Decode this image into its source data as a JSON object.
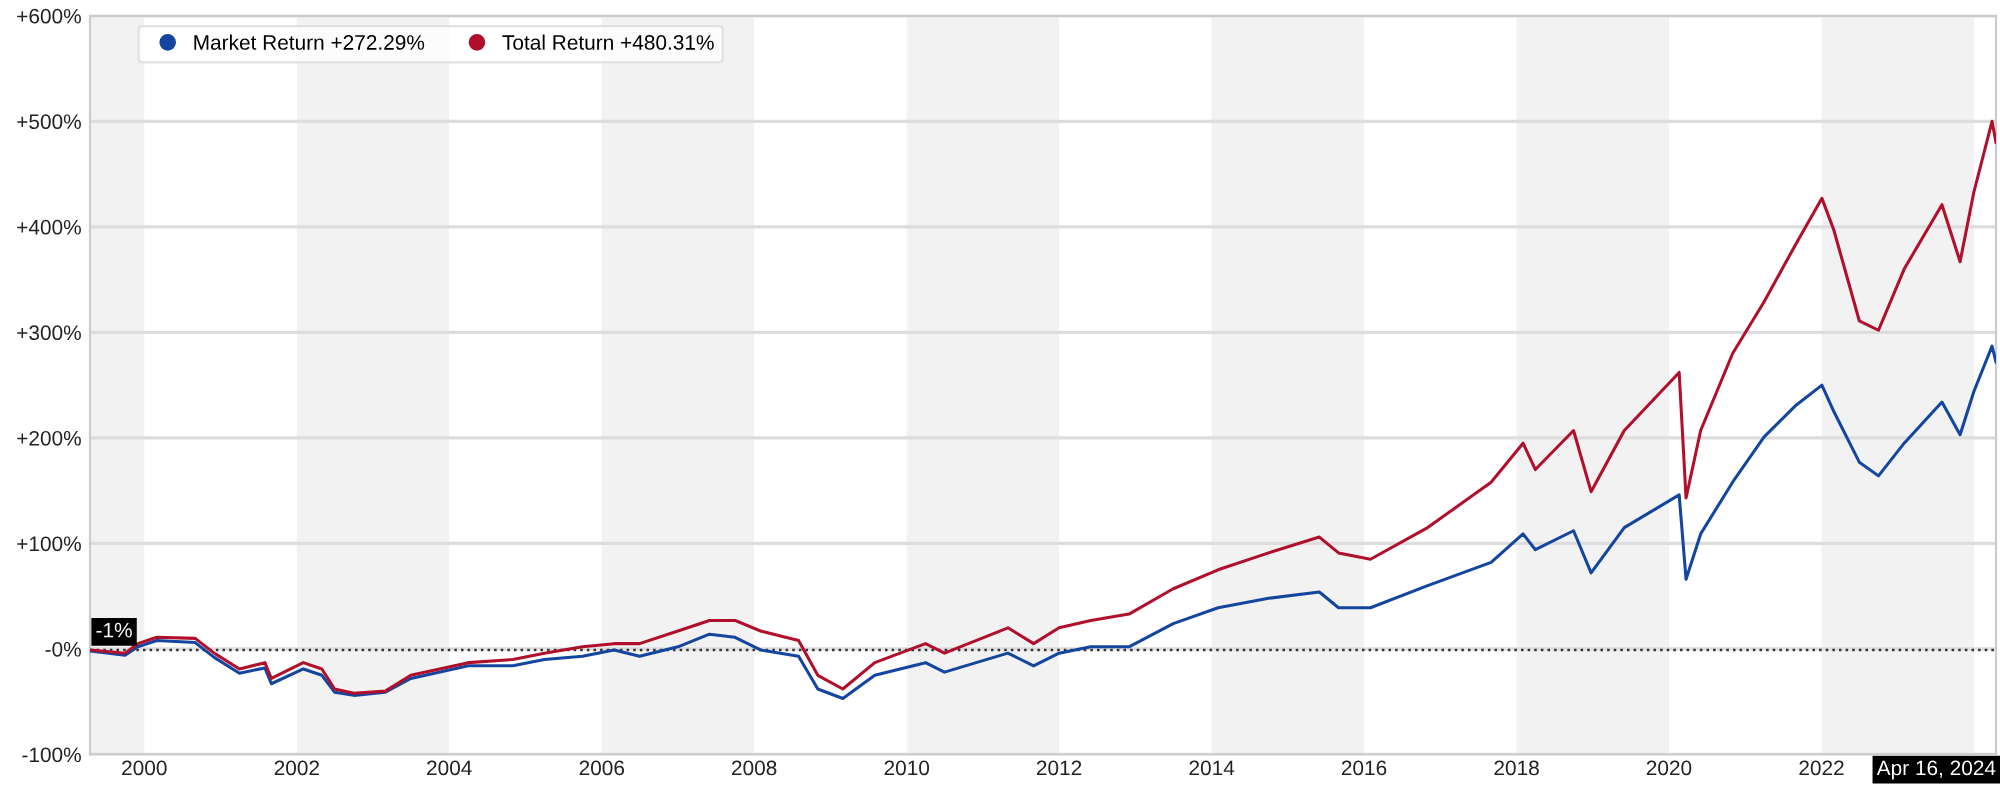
{
  "chart_data": {
    "type": "line",
    "x": [
      "1999-04-16",
      "1999-10",
      "1999-12",
      "2000-03",
      "2000-09",
      "2000-12",
      "2001-04",
      "2001-08",
      "2001-09",
      "2002-02",
      "2002-05",
      "2002-07",
      "2002-10",
      "2003-03",
      "2003-07",
      "2004-04",
      "2004-11",
      "2005-04",
      "2005-10",
      "2006-03",
      "2006-07",
      "2007-01",
      "2007-06",
      "2007-10",
      "2008-02",
      "2008-08",
      "2008-11",
      "2009-03",
      "2009-08",
      "2010-04",
      "2010-07",
      "2011-05",
      "2011-09",
      "2012-01",
      "2012-06",
      "2012-12",
      "2013-07",
      "2014-02",
      "2014-10",
      "2015-06",
      "2015-09",
      "2016-02",
      "2016-11",
      "2017-09",
      "2018-02",
      "2018-04",
      "2018-10",
      "2018-12-24",
      "2019-06",
      "2020-02-19",
      "2020-03-23",
      "2020-06",
      "2020-11",
      "2021-04",
      "2021-09",
      "2022-01-03",
      "2022-03",
      "2022-07",
      "2022-10",
      "2023-02",
      "2023-08",
      "2023-10-27",
      "2024-01",
      "2024-03-28",
      "2024-04-16"
    ],
    "series": [
      {
        "name": "Market Return +272.29%",
        "color": "#1446a0",
        "values": [
          -2,
          -6,
          2,
          8,
          6,
          -8,
          -23,
          -18,
          -33,
          -19,
          -25,
          -41,
          -44,
          -41,
          -28,
          -16,
          -16,
          -10,
          -7,
          -1,
          -7,
          2,
          14,
          11,
          -1,
          -7,
          -38,
          -47,
          -25,
          -13,
          -22,
          -4,
          -16,
          -4,
          2,
          2,
          24,
          39,
          48,
          54,
          39,
          39,
          60,
          82,
          109,
          94,
          112,
          72,
          115,
          146,
          66,
          109,
          158,
          201,
          231,
          250,
          225,
          177,
          164,
          195,
          234,
          203,
          244,
          287,
          272
        ]
      },
      {
        "name": "Total Return +480.31%",
        "color": "#b0102c",
        "values": [
          -1,
          -4,
          5,
          11,
          10,
          -4,
          -19,
          -13,
          -28,
          -13,
          -19,
          -38,
          -42,
          -40,
          -25,
          -13,
          -10,
          -4,
          2,
          5,
          5,
          17,
          27,
          27,
          17,
          8,
          -25,
          -38,
          -13,
          5,
          -4,
          20,
          5,
          20,
          27,
          33,
          57,
          75,
          91,
          106,
          91,
          85,
          115,
          158,
          195,
          170,
          207,
          149,
          207,
          262,
          143,
          207,
          280,
          329,
          384,
          427,
          397,
          311,
          302,
          360,
          421,
          367,
          433,
          500,
          480
        ]
      }
    ],
    "xlim": [
      "1999-04-16",
      "2024-04-16"
    ],
    "xticks": [
      {
        "value": "2000",
        "label": "2000"
      },
      {
        "value": "2002",
        "label": "2002"
      },
      {
        "value": "2004",
        "label": "2004"
      },
      {
        "value": "2006",
        "label": "2006"
      },
      {
        "value": "2008",
        "label": "2008"
      },
      {
        "value": "2010",
        "label": "2010"
      },
      {
        "value": "2012",
        "label": "2012"
      },
      {
        "value": "2014",
        "label": "2014"
      },
      {
        "value": "2016",
        "label": "2016"
      },
      {
        "value": "2018",
        "label": "2018"
      },
      {
        "value": "2020",
        "label": "2020"
      },
      {
        "value": "2022",
        "label": "2022"
      },
      {
        "value": "2024-04-16",
        "label": "Apr 16, 2024"
      }
    ],
    "ylim": [
      -100,
      600
    ],
    "yticks": [
      {
        "value": -100,
        "label": "-100%"
      },
      {
        "value": 0,
        "label": "-0%"
      },
      {
        "value": 100,
        "label": "+100%"
      },
      {
        "value": 200,
        "label": "+200%"
      },
      {
        "value": 300,
        "label": "+300%"
      },
      {
        "value": 400,
        "label": "+400%"
      },
      {
        "value": 500,
        "label": "+500%"
      },
      {
        "value": 600,
        "label": "+600%"
      }
    ],
    "ref_lines": [
      {
        "axis": "y",
        "value": -1,
        "label": "-1%",
        "color": "#333333",
        "line_style": "dotted"
      }
    ],
    "bands": [
      {
        "axis": "x",
        "from": "1999-04-16",
        "to": "2000",
        "color": "#f2f2f2"
      },
      {
        "axis": "x",
        "from": "2002",
        "to": "2004",
        "color": "#f2f2f2"
      },
      {
        "axis": "x",
        "from": "2006",
        "to": "2008",
        "color": "#f2f2f2"
      },
      {
        "axis": "x",
        "from": "2010",
        "to": "2012",
        "color": "#f2f2f2"
      },
      {
        "axis": "x",
        "from": "2014",
        "to": "2016",
        "color": "#f2f2f2"
      },
      {
        "axis": "x",
        "from": "2018",
        "to": "2020",
        "color": "#f2f2f2"
      },
      {
        "axis": "x",
        "from": "2022",
        "to": "2024",
        "color": "#f2f2f2"
      }
    ],
    "grid": "y",
    "legend": "top left",
    "marker": "none",
    "line_style": "solid"
  }
}
